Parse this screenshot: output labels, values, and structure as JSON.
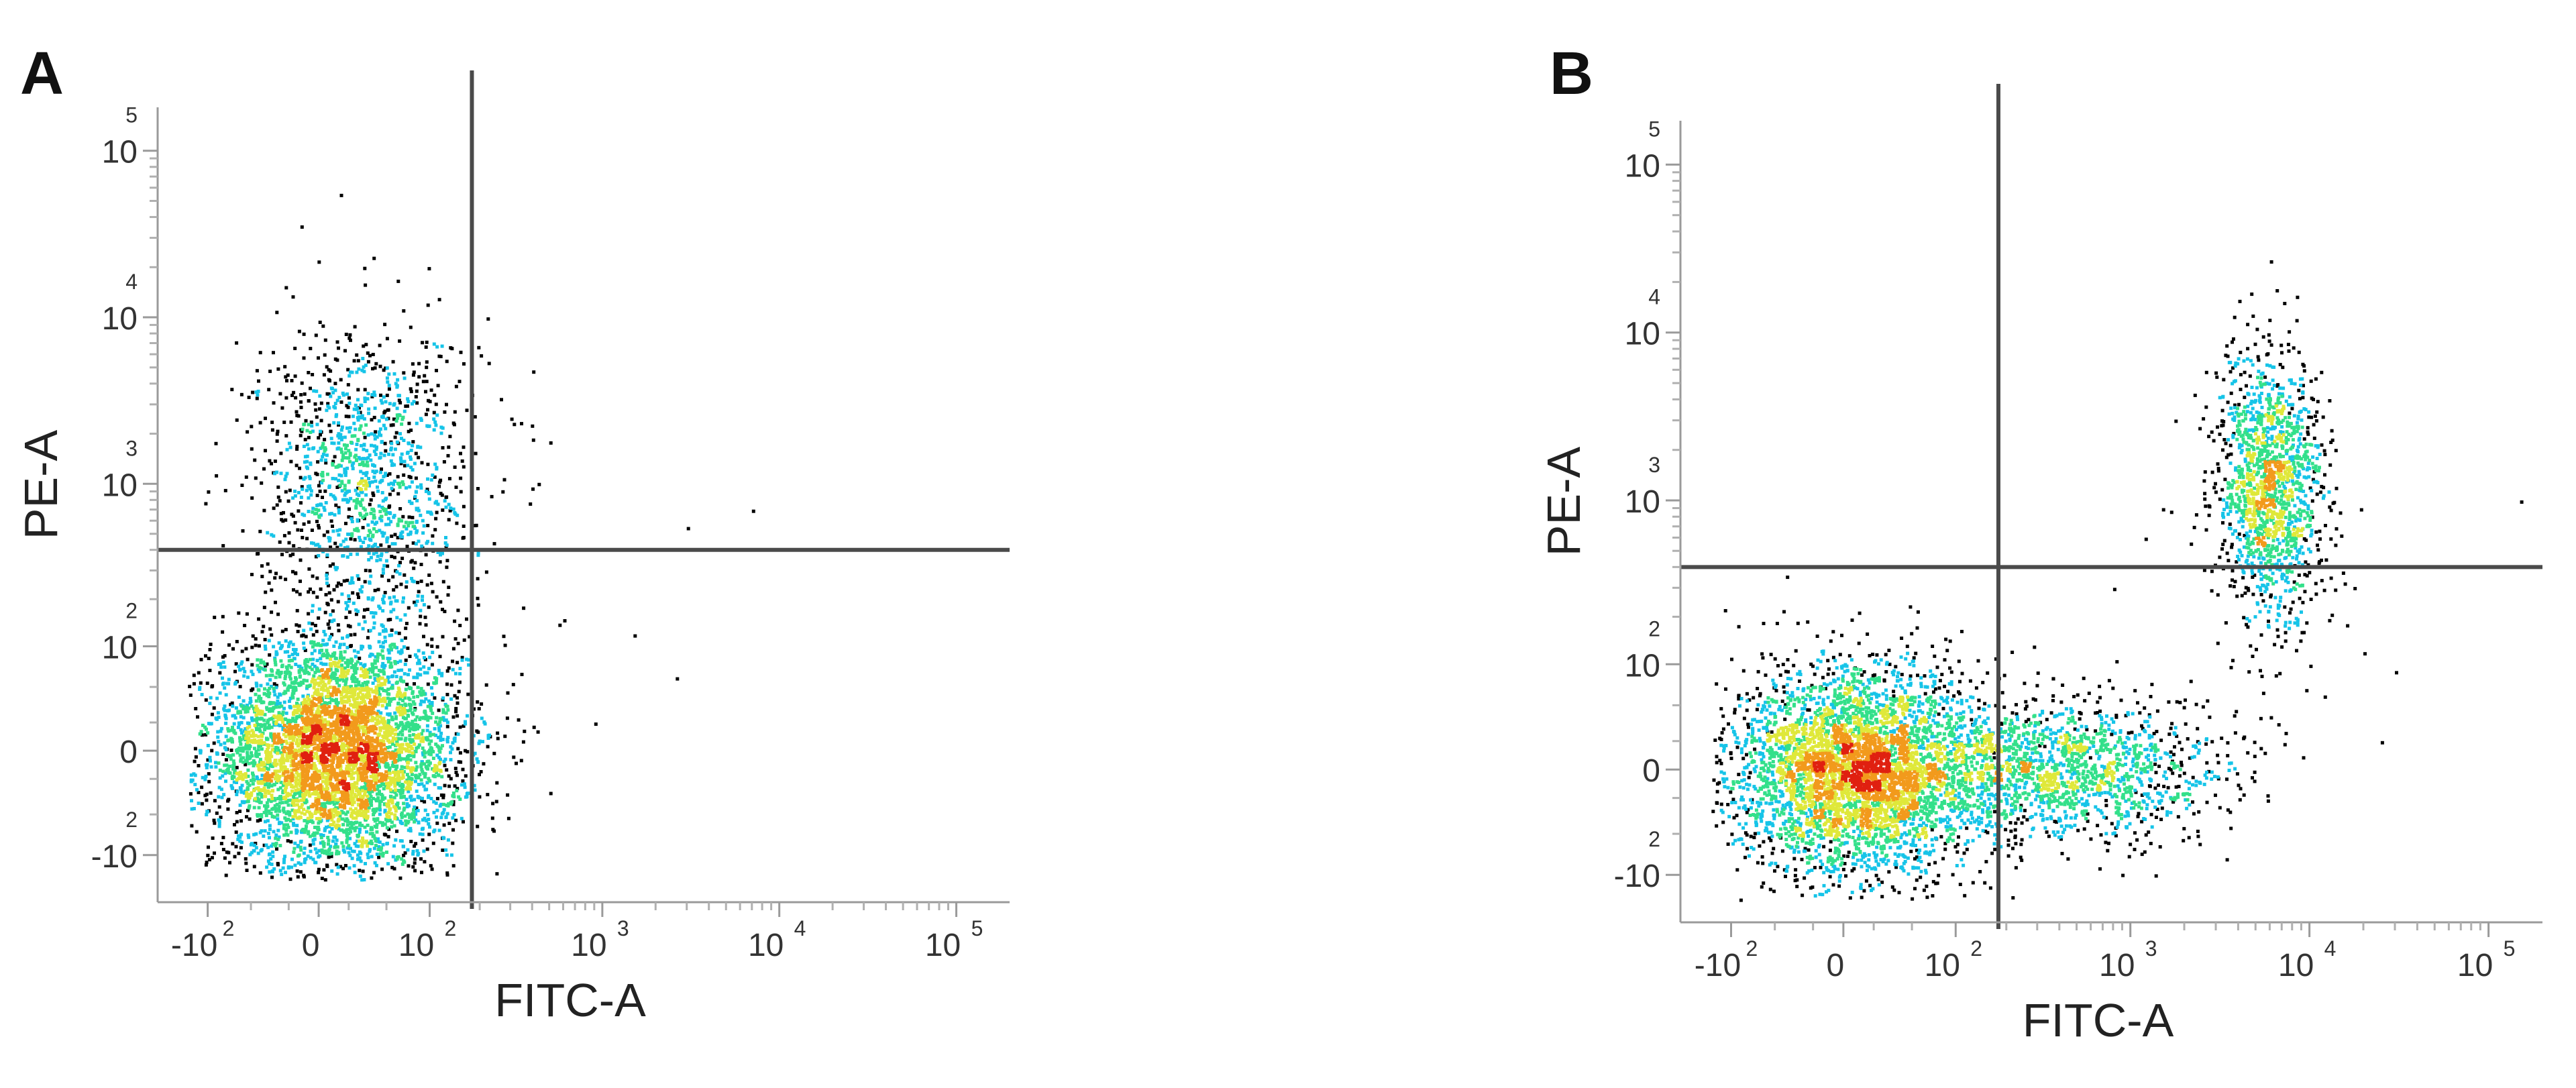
{
  "chart_data": [
    {
      "panel": "A",
      "type": "scatter",
      "subtype": "flow-cytometry density dot plot",
      "xlabel": "FITC-A",
      "ylabel": "PE-A",
      "x_ticks": [
        {
          "value": -100,
          "base": "-10",
          "exp": "2"
        },
        {
          "value": 0,
          "base": "0",
          "exp": ""
        },
        {
          "value": 100,
          "base": "10",
          "exp": "2"
        },
        {
          "value": 1000,
          "base": "10",
          "exp": "3"
        },
        {
          "value": 10000,
          "base": "10",
          "exp": "4"
        },
        {
          "value": 100000,
          "base": "10",
          "exp": "5"
        }
      ],
      "y_ticks": [
        {
          "value": -100,
          "base": "-10",
          "exp": "2"
        },
        {
          "value": 0,
          "base": "0",
          "exp": ""
        },
        {
          "value": 100,
          "base": "10",
          "exp": "2"
        },
        {
          "value": 1000,
          "base": "10",
          "exp": "3"
        },
        {
          "value": 10000,
          "base": "10",
          "exp": "4"
        },
        {
          "value": 100000,
          "base": "10",
          "exp": "5"
        }
      ],
      "xlim": [
        -200,
        200000
      ],
      "ylim": [
        -200,
        200000
      ],
      "axis_scale": "biexponential",
      "quadrant_gate": {
        "x": 180,
        "y": 400
      },
      "populations": [
        {
          "name": "",
          "x": 10,
          "y": 0,
          "count": 5200,
          "spread_x": 0.35,
          "spread_y": 0.35
        },
        {
          "name": "",
          "x": 30,
          "y": 1100,
          "count": 1300,
          "spread_x": 0.3,
          "spread_y": 0.45
        }
      ],
      "scattered_events": [
        [
          200,
          6000
        ],
        [
          400,
          4800
        ],
        [
          300,
          2500
        ],
        [
          500,
          1800
        ],
        [
          7000,
          700
        ],
        [
          3000,
          550
        ],
        [
          350,
          180
        ],
        [
          600,
          150
        ],
        [
          1500,
          120
        ],
        [
          2600,
          60
        ],
        [
          900,
          20
        ],
        [
          500,
          -30
        ]
      ],
      "colormap": [
        "#0a1fd6",
        "#0f6ef2",
        "#16c4e8",
        "#33e08a",
        "#dfe83a",
        "#f29a1c",
        "#e02010"
      ],
      "grid": false
    },
    {
      "panel": "B",
      "type": "scatter",
      "subtype": "flow-cytometry density dot plot",
      "xlabel": "FITC-A",
      "ylabel": "PE-A",
      "x_ticks": [
        {
          "value": -100,
          "base": "-10",
          "exp": "2"
        },
        {
          "value": 0,
          "base": "0",
          "exp": ""
        },
        {
          "value": 100,
          "base": "10",
          "exp": "2"
        },
        {
          "value": 1000,
          "base": "10",
          "exp": "3"
        },
        {
          "value": 10000,
          "base": "10",
          "exp": "4"
        },
        {
          "value": 100000,
          "base": "10",
          "exp": "5"
        }
      ],
      "y_ticks": [
        {
          "value": -100,
          "base": "-10",
          "exp": "2"
        },
        {
          "value": 0,
          "base": "0",
          "exp": ""
        },
        {
          "value": 100,
          "base": "10",
          "exp": "2"
        },
        {
          "value": 1000,
          "base": "10",
          "exp": "3"
        },
        {
          "value": 10000,
          "base": "10",
          "exp": "4"
        },
        {
          "value": 100000,
          "base": "10",
          "exp": "5"
        }
      ],
      "xlim": [
        -200,
        200000
      ],
      "ylim": [
        -200,
        200000
      ],
      "axis_scale": "biexponential",
      "quadrant_gate": {
        "x": 180,
        "y": 400
      },
      "populations": [
        {
          "name": "",
          "x": 10,
          "y": 0,
          "count": 4200,
          "spread_x": 0.35,
          "spread_y": 0.3
        },
        {
          "name": "",
          "x": 400,
          "y": 0,
          "count": 1600,
          "spread_x": 0.45,
          "spread_y": 0.2
        },
        {
          "name": "",
          "x": 6000,
          "y": 1200,
          "count": 1500,
          "spread_x": 0.15,
          "spread_y": 0.4
        }
      ],
      "scattered_events": [
        [
          3000,
          2800
        ],
        [
          1500,
          900
        ],
        [
          1200,
          600
        ],
        [
          800,
          300
        ],
        [
          9000,
          250
        ],
        [
          16000,
          180
        ],
        [
          20000,
          120
        ],
        [
          30000,
          90
        ],
        [
          12000,
          60
        ],
        [
          2500,
          50
        ],
        [
          6000,
          40
        ],
        [
          150000,
          1000
        ],
        [
          25000,
          20
        ]
      ],
      "colormap": [
        "#0a1fd6",
        "#0f6ef2",
        "#16c4e8",
        "#33e08a",
        "#dfe83a",
        "#f29a1c",
        "#e02010"
      ],
      "grid": false
    }
  ]
}
